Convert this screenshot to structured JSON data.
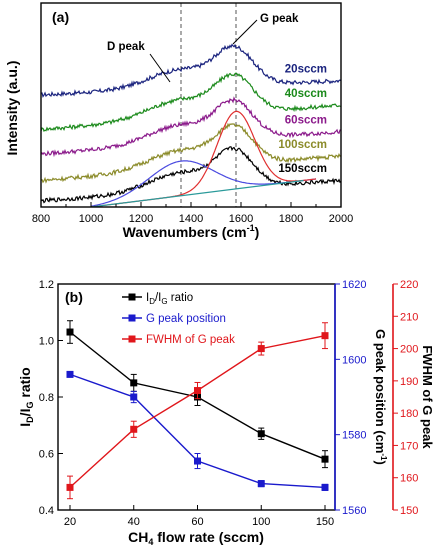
{
  "chart_data": [
    {
      "type": "line",
      "panel_label": "(a)",
      "xlabel": "Wavenumbers (cm",
      "xlabel_sup": "-1",
      "xlabel_close": ")",
      "ylabel": "Intensity (a.u.)",
      "xlim": [
        800,
        2000
      ],
      "x_ticks": [
        "800",
        "1000",
        "1200",
        "1400",
        "1600",
        "1800",
        "2000"
      ],
      "vlines": [
        1360,
        1580
      ],
      "annotations": {
        "d_peak": "D peak",
        "g_peak": "G peak"
      },
      "series": [
        {
          "name": "20sccm",
          "color": "#1a237e",
          "offset": 0.78,
          "y_at_800": 0.55,
          "y_at_2000": 0.62
        },
        {
          "name": "40sccm",
          "color": "#1b8a1b",
          "offset": 0.62,
          "y_at_800": 0.38,
          "y_at_2000": 0.5
        },
        {
          "name": "60sccm",
          "color": "#8b1a8b",
          "offset": 0.48,
          "y_at_800": 0.26,
          "y_at_2000": 0.37
        },
        {
          "name": "100sccm",
          "color": "#8b8b2a",
          "offset": 0.38,
          "y_at_800": 0.13,
          "y_at_2000": 0.25
        },
        {
          "name": "150sccm",
          "color": "#000000",
          "offset": 0.28,
          "y_at_800": 0.03,
          "y_at_2000": 0.13
        }
      ],
      "fit_components": [
        {
          "name": "D fit",
          "color": "#4a4ae0",
          "center": 1360,
          "width": 130,
          "height": 0.17
        },
        {
          "name": "G fit",
          "color": "#e03030",
          "center": 1580,
          "width": 75,
          "height": 0.38
        },
        {
          "name": "baseline",
          "color": "#2a9a9a",
          "from": [
            1000,
            0.0
          ],
          "to": [
            1850,
            0.13
          ]
        }
      ]
    },
    {
      "type": "line",
      "panel_label": "(b)",
      "categories": [
        "20",
        "40",
        "60",
        "100",
        "150"
      ],
      "xlabel": "CH",
      "xlabel_sub": "4",
      "xlabel_rest": " flow rate (sccm)",
      "left_axis": {
        "label_main": "I",
        "label_sub1": "D",
        "label_mid": "/I",
        "label_sub2": "G",
        "label_end": " ratio",
        "ylim": [
          0.4,
          1.2
        ],
        "ticks": [
          "0.4",
          "0.6",
          "0.8",
          "1.0",
          "1.2"
        ]
      },
      "right_axis_1": {
        "label": "G peak position (cm",
        "label_sup": "-1",
        "label_close": ")",
        "color": "#1a1acc",
        "ylim": [
          1560,
          1620
        ],
        "ticks": [
          "1560",
          "1580",
          "1600",
          "1620"
        ]
      },
      "right_axis_2": {
        "label": "FWHM of G peak",
        "color": "#e0161b",
        "ylim": [
          150,
          220
        ],
        "ticks": [
          "150",
          "160",
          "170",
          "180",
          "190",
          "200",
          "210",
          "220"
        ]
      },
      "legend_placement": "top-center",
      "series": [
        {
          "name_main": "I",
          "name_sub1": "D",
          "name_mid": "/I",
          "name_sub2": "G",
          "name_end": " ratio",
          "axis": "left",
          "color": "#000000",
          "values": [
            1.03,
            0.85,
            0.8,
            0.67,
            0.58
          ],
          "errors": [
            0.04,
            0.03,
            0.03,
            0.02,
            0.03
          ]
        },
        {
          "name": "G peak position",
          "axis": "right_1",
          "color": "#1a1acc",
          "values": [
            1596,
            1590,
            1573,
            1567,
            1566
          ],
          "errors": [
            0.0,
            1.5,
            2.0,
            0.8,
            0.8
          ]
        },
        {
          "name": "FWHM of G peak",
          "axis": "right_2",
          "color": "#e0161b",
          "values": [
            157,
            175,
            187,
            200,
            204
          ],
          "errors": [
            3.5,
            2.5,
            2.5,
            2.0,
            4.0
          ]
        }
      ]
    }
  ]
}
